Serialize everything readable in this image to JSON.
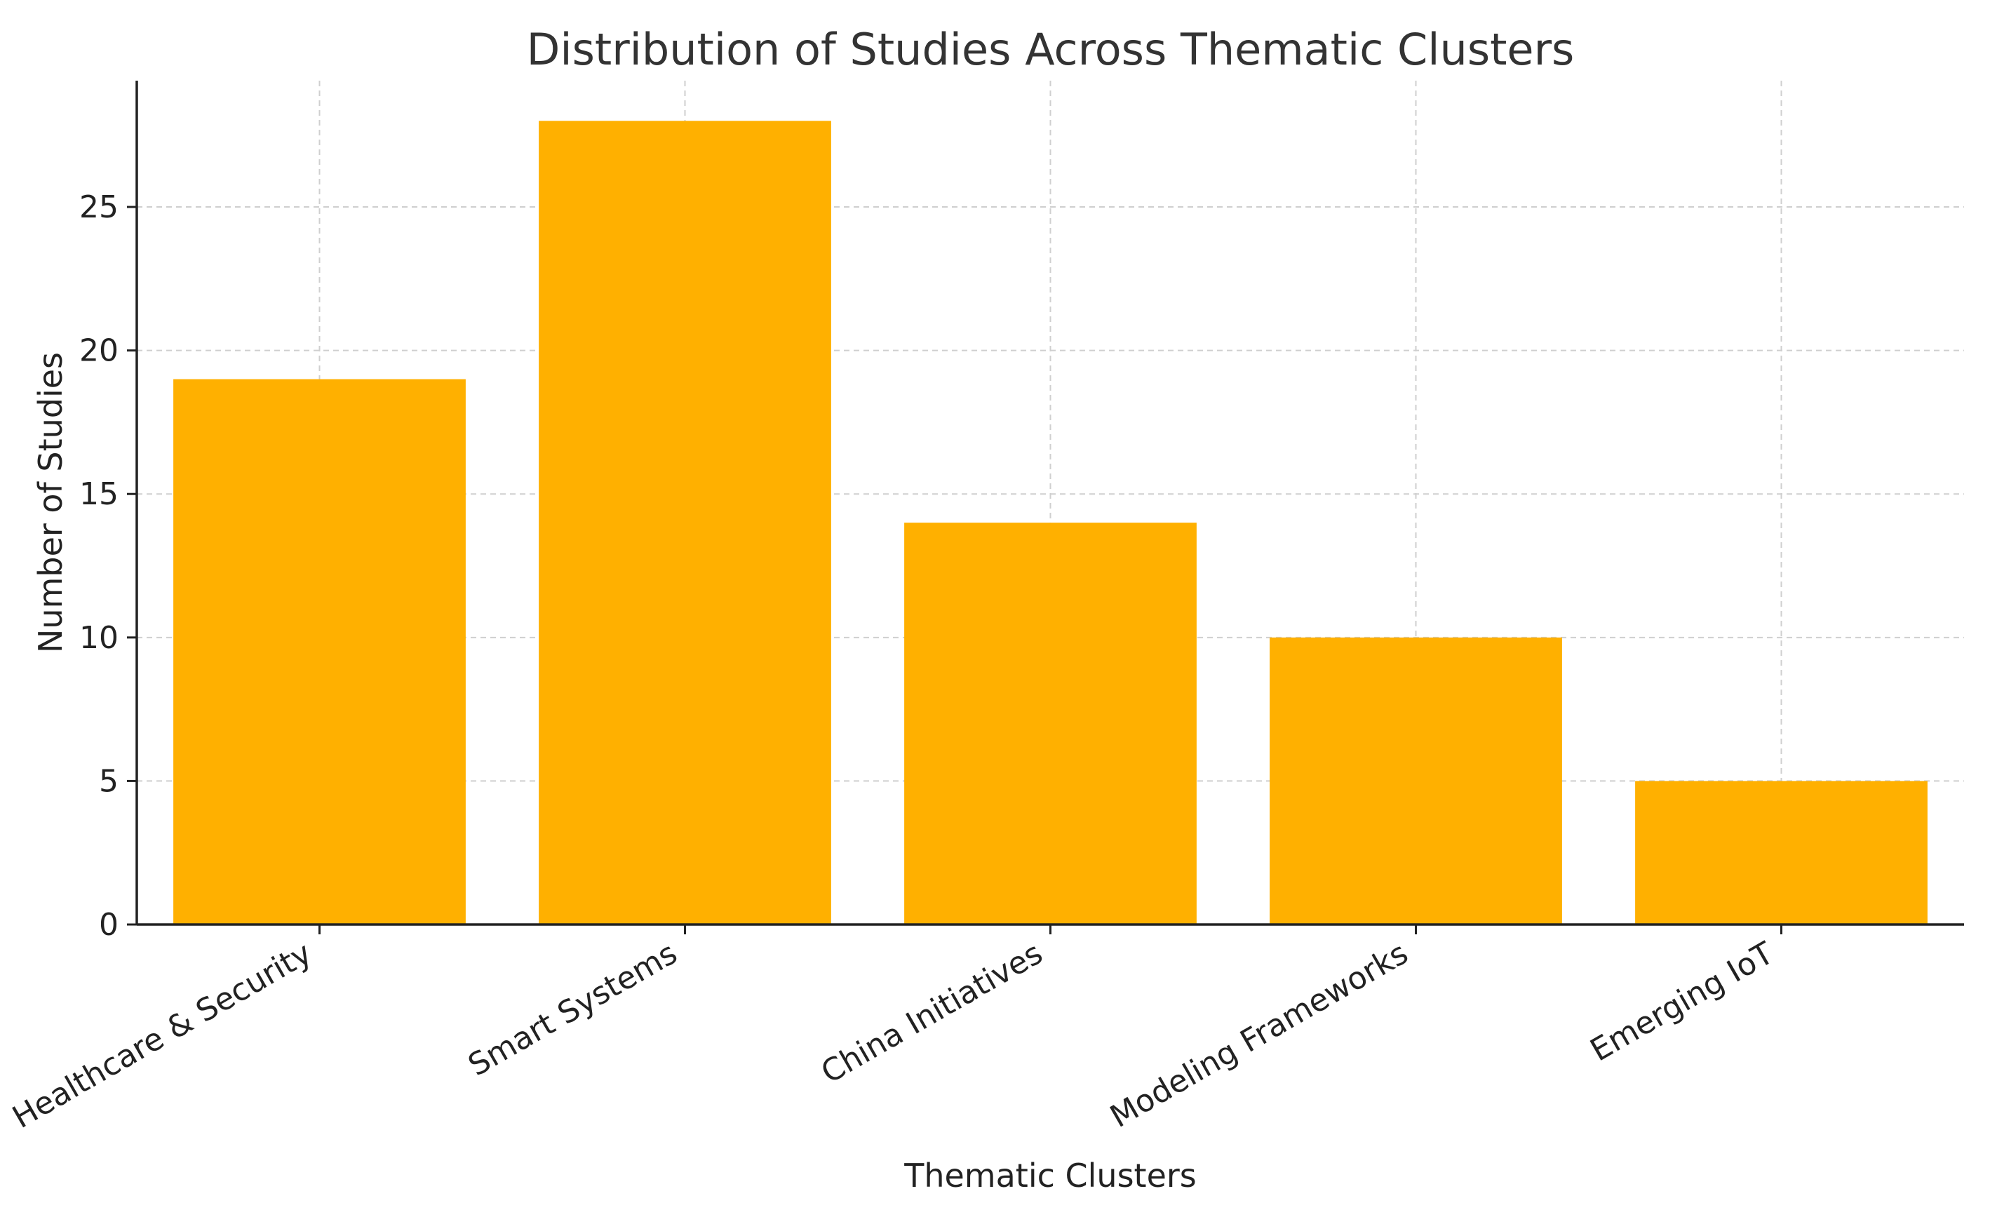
{
  "chart_data": {
    "type": "bar",
    "title": "Distribution of Studies Across Thematic Clusters",
    "xlabel": "Thematic Clusters",
    "ylabel": "Number of Studies",
    "categories": [
      "Healthcare & Security",
      "Smart Systems",
      "China Initiatives",
      "Modeling Frameworks",
      "Emerging IoT"
    ],
    "values": [
      19,
      28,
      14,
      10,
      5
    ],
    "ylim": [
      0,
      29.4
    ],
    "yticks": [
      0,
      5,
      10,
      15,
      20,
      25
    ],
    "ytick_labels": [
      "0",
      "5",
      "10",
      "15",
      "20",
      "25"
    ],
    "bar_color": "#FFB000",
    "grid": true,
    "legend": "none"
  }
}
